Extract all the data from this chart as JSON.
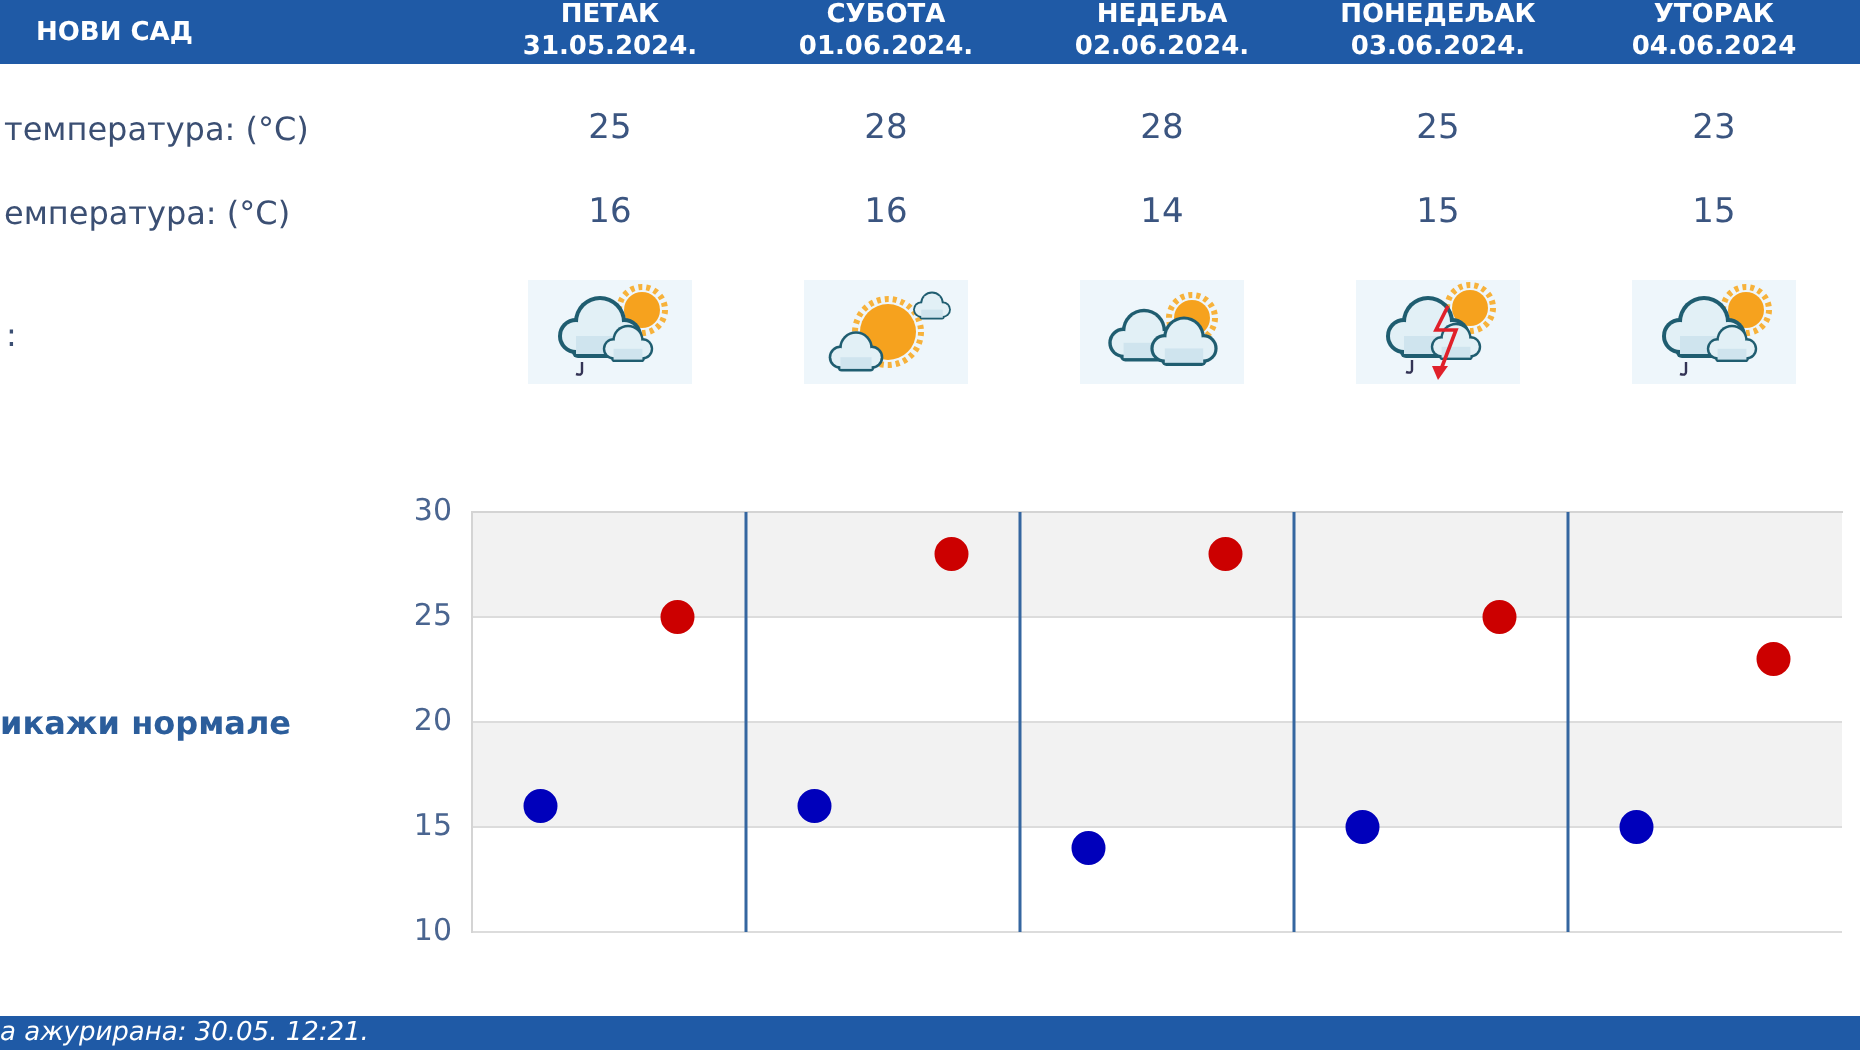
{
  "chart_data": {
    "type": "scatter",
    "title": "НОВИ САД",
    "categories": [
      null,
      null,
      null,
      null,
      null
    ],
    "series": [
      {
        "color": "#0000bb",
        "values": [
          16,
          16,
          14,
          15,
          15
        ]
      },
      {
        "color": "#cc0000",
        "values": [
          25,
          28,
          28,
          25,
          23
        ]
      }
    ],
    "ylim": [
      10,
      30
    ],
    "yticks": [
      10,
      15,
      20,
      25,
      30
    ],
    "grid": true,
    "marker": "circle",
    "data_labels": true,
    "annotations": [
      "ПЕТАК\n31.05.2024.",
      "СУБОТА\n01.06.2024.",
      "НЕДЕЉА\n02.06.2024.",
      "ПОНЕДЕЉАК\n03.06.2024.",
      "УТОРАК\n04.06.2024",
      "температура: (°C)",
      "емпература: (°C)",
      ":",
      "икажи нормале",
      "а ажурирана: 30.05. 12:21."
    ]
  }
}
